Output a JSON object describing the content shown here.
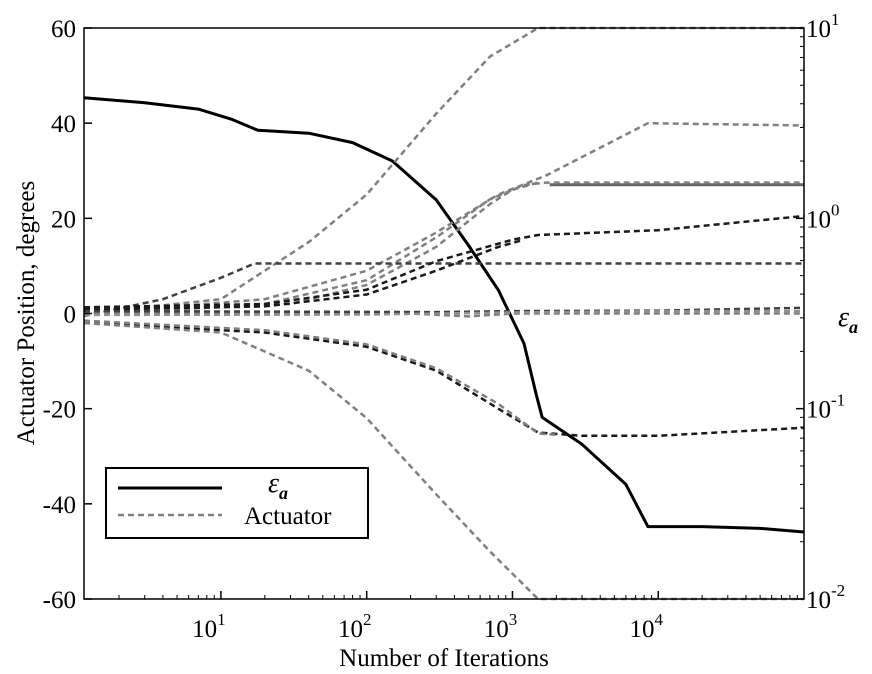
{
  "chart_data": {
    "type": "line",
    "xlabel": "Number of Iterations",
    "ylabel": "Actuator Position, degrees",
    "y2label": {
      "symbol": "ε",
      "subscript": "a"
    },
    "xscale": "log",
    "xlim": [
      1.15,
      100000
    ],
    "ylim": [
      -60,
      60
    ],
    "y2scale": "log",
    "y2lim": [
      0.01,
      10
    ],
    "y_ticks": [
      -60,
      -40,
      -20,
      0,
      20,
      40,
      60
    ],
    "y_tick_labels": [
      "-60",
      "-40",
      "-20",
      "0",
      "20",
      "40",
      "60"
    ],
    "x_ticks": [
      {
        "value": 10,
        "base": "10",
        "exp": "1"
      },
      {
        "value": 100,
        "base": "10",
        "exp": "2"
      },
      {
        "value": 1000,
        "base": "10",
        "exp": "3"
      },
      {
        "value": 10000,
        "base": "10",
        "exp": "4"
      }
    ],
    "y2_ticks": [
      {
        "value": 0.01,
        "base": "10",
        "exp": "-2"
      },
      {
        "value": 0.1,
        "base": "10",
        "exp": "-1"
      },
      {
        "value": 1,
        "base": "10",
        "exp": "0"
      },
      {
        "value": 10,
        "base": "10",
        "exp": "1"
      }
    ],
    "grid": false,
    "legend": {
      "position": "bottom-left",
      "entries": [
        {
          "label": {
            "symbol": "ε",
            "subscript": "a"
          },
          "style": "solid",
          "color": "#000000"
        },
        {
          "label": "Actuator",
          "style": "dashed",
          "color": "#808080"
        }
      ]
    },
    "series": [
      {
        "axis": "right",
        "style": "solid",
        "color": "#000000",
        "width": 3,
        "points": [
          [
            1.15,
            4.3
          ],
          [
            3,
            4.05
          ],
          [
            7,
            3.75
          ],
          [
            12,
            3.3
          ],
          [
            17,
            2.95
          ],
          [
            18,
            2.9
          ],
          [
            40,
            2.8
          ],
          [
            80,
            2.5
          ],
          [
            150,
            2.0
          ],
          [
            300,
            1.25
          ],
          [
            500,
            0.72
          ],
          [
            800,
            0.42
          ],
          [
            1200,
            0.22
          ],
          [
            1450,
            0.12
          ],
          [
            1600,
            0.09
          ],
          [
            3000,
            0.065
          ],
          [
            6000,
            0.04
          ],
          [
            8500,
            0.024
          ],
          [
            20000,
            0.024
          ],
          [
            50000,
            0.0235
          ],
          [
            100000,
            0.0225
          ]
        ]
      },
      {
        "axis": "right",
        "style": "solid",
        "color": "#666666",
        "width": 3,
        "points": [
          [
            1800,
            1.5
          ],
          [
            100000,
            1.5
          ]
        ]
      },
      {
        "axis": "left",
        "style": "dashed",
        "color": "#808080",
        "width": 2.5,
        "points": [
          [
            1.15,
            0
          ],
          [
            10,
            3
          ],
          [
            40,
            15
          ],
          [
            100,
            25
          ],
          [
            300,
            42
          ],
          [
            700,
            54
          ],
          [
            1500,
            60
          ],
          [
            100000,
            60
          ]
        ]
      },
      {
        "axis": "left",
        "style": "dashed",
        "color": "#808080",
        "width": 2.5,
        "points": [
          [
            1.15,
            0
          ],
          [
            20,
            3
          ],
          [
            100,
            9
          ],
          [
            300,
            17
          ],
          [
            800,
            25
          ],
          [
            1700,
            29
          ],
          [
            8500,
            40
          ],
          [
            100000,
            39.5
          ]
        ]
      },
      {
        "axis": "left",
        "style": "dashed",
        "color": "#808080",
        "width": 2.5,
        "points": [
          [
            1.15,
            0
          ],
          [
            20,
            2
          ],
          [
            100,
            7
          ],
          [
            300,
            16
          ],
          [
            700,
            24
          ],
          [
            1200,
            27
          ],
          [
            1700,
            27.5
          ],
          [
            100000,
            27.5
          ]
        ]
      },
      {
        "axis": "left",
        "style": "dashed",
        "color": "#808080",
        "width": 2.5,
        "points": [
          [
            1.15,
            0
          ],
          [
            30,
            2
          ],
          [
            100,
            6
          ],
          [
            300,
            14
          ],
          [
            700,
            23
          ],
          [
            1000,
            26
          ],
          [
            1500,
            27.5
          ]
        ]
      },
      {
        "axis": "left",
        "style": "dashed",
        "color": "#404040",
        "width": 2.5,
        "points": [
          [
            1.15,
            -0.5
          ],
          [
            4,
            3
          ],
          [
            10,
            7.5
          ],
          [
            17,
            10.5
          ],
          [
            100000,
            10.5
          ]
        ]
      },
      {
        "axis": "left",
        "style": "dashed",
        "color": "#1a1a1a",
        "width": 2.5,
        "points": [
          [
            1.15,
            1.3
          ],
          [
            20,
            2
          ],
          [
            100,
            5
          ],
          [
            300,
            11
          ],
          [
            1000,
            15.5
          ],
          [
            1500,
            16.5
          ],
          [
            10000,
            17.5
          ],
          [
            100000,
            20.5
          ]
        ]
      },
      {
        "axis": "left",
        "style": "dashed",
        "color": "#1a1a1a",
        "width": 2.5,
        "points": [
          [
            1.15,
            0.8
          ],
          [
            20,
            1.5
          ],
          [
            100,
            4
          ],
          [
            300,
            9
          ],
          [
            800,
            14
          ],
          [
            1200,
            15.5
          ]
        ]
      },
      {
        "axis": "left",
        "style": "dashed",
        "color": "#808080",
        "width": 2.5,
        "points": [
          [
            1.15,
            0
          ],
          [
            200,
            0
          ],
          [
            500,
            -0.6
          ],
          [
            1000,
            0
          ],
          [
            100000,
            0
          ]
        ]
      },
      {
        "axis": "left",
        "style": "dashed",
        "color": "#404040",
        "width": 2.5,
        "points": [
          [
            1.15,
            0.5
          ],
          [
            300,
            0.3
          ],
          [
            1000,
            0.5
          ],
          [
            10000,
            0.6
          ],
          [
            100000,
            1.2
          ]
        ]
      },
      {
        "axis": "left",
        "style": "dashed",
        "color": "#909090",
        "width": 2.5,
        "points": [
          [
            1.15,
            -0.3
          ],
          [
            100,
            -0.2
          ],
          [
            1000,
            0.2
          ],
          [
            10000,
            0.5
          ],
          [
            100000,
            0.5
          ]
        ]
      },
      {
        "axis": "left",
        "style": "dashed",
        "color": "#1a1a1a",
        "width": 2.5,
        "points": [
          [
            1.15,
            -2
          ],
          [
            20,
            -4
          ],
          [
            100,
            -7
          ],
          [
            300,
            -12
          ],
          [
            800,
            -20
          ],
          [
            1500,
            -25
          ],
          [
            3000,
            -25.7
          ],
          [
            10000,
            -25.7
          ],
          [
            100000,
            -24
          ]
        ]
      },
      {
        "axis": "left",
        "style": "dashed",
        "color": "#808080",
        "width": 2.5,
        "points": [
          [
            1.15,
            -1.5
          ],
          [
            20,
            -3.5
          ],
          [
            100,
            -6.5
          ],
          [
            300,
            -11.5
          ],
          [
            800,
            -19
          ],
          [
            1500,
            -25.2
          ],
          [
            2000,
            -25.5
          ]
        ]
      },
      {
        "axis": "left",
        "style": "dashed",
        "color": "#808080",
        "width": 2.5,
        "points": [
          [
            1.15,
            -2
          ],
          [
            10,
            -4
          ],
          [
            40,
            -12
          ],
          [
            100,
            -22
          ],
          [
            300,
            -38
          ],
          [
            700,
            -50
          ],
          [
            1500,
            -60
          ],
          [
            100000,
            -60
          ]
        ]
      }
    ]
  }
}
